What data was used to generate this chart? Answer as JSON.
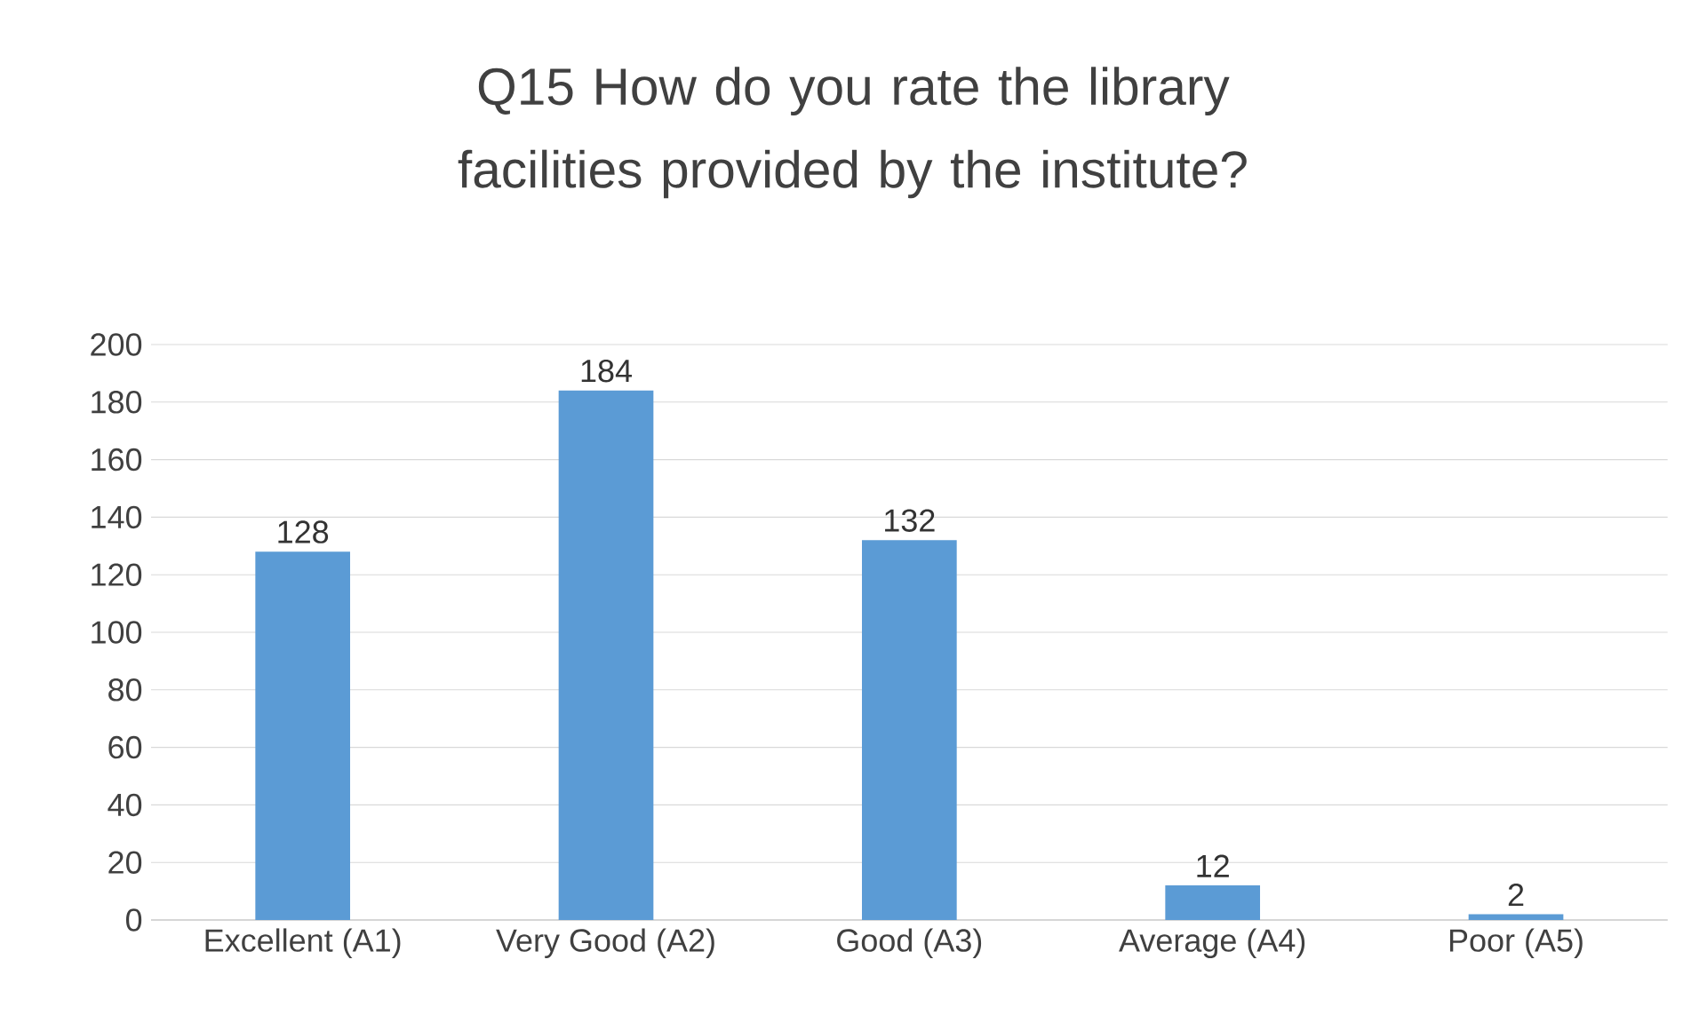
{
  "chart_data": {
    "type": "bar",
    "title": "Q15 How do you rate the library facilities provided by the institute?",
    "categories": [
      "Excellent (A1)",
      "Very Good (A2)",
      "Good (A3)",
      "Average (A4)",
      "Poor (A5)"
    ],
    "values": [
      128,
      184,
      132,
      12,
      2
    ],
    "color": "#5b9bd5",
    "ylim": [
      0,
      200
    ],
    "yticks": [
      0,
      20,
      40,
      60,
      80,
      100,
      120,
      140,
      160,
      180,
      200
    ],
    "grid": "y",
    "data_labels": true
  }
}
